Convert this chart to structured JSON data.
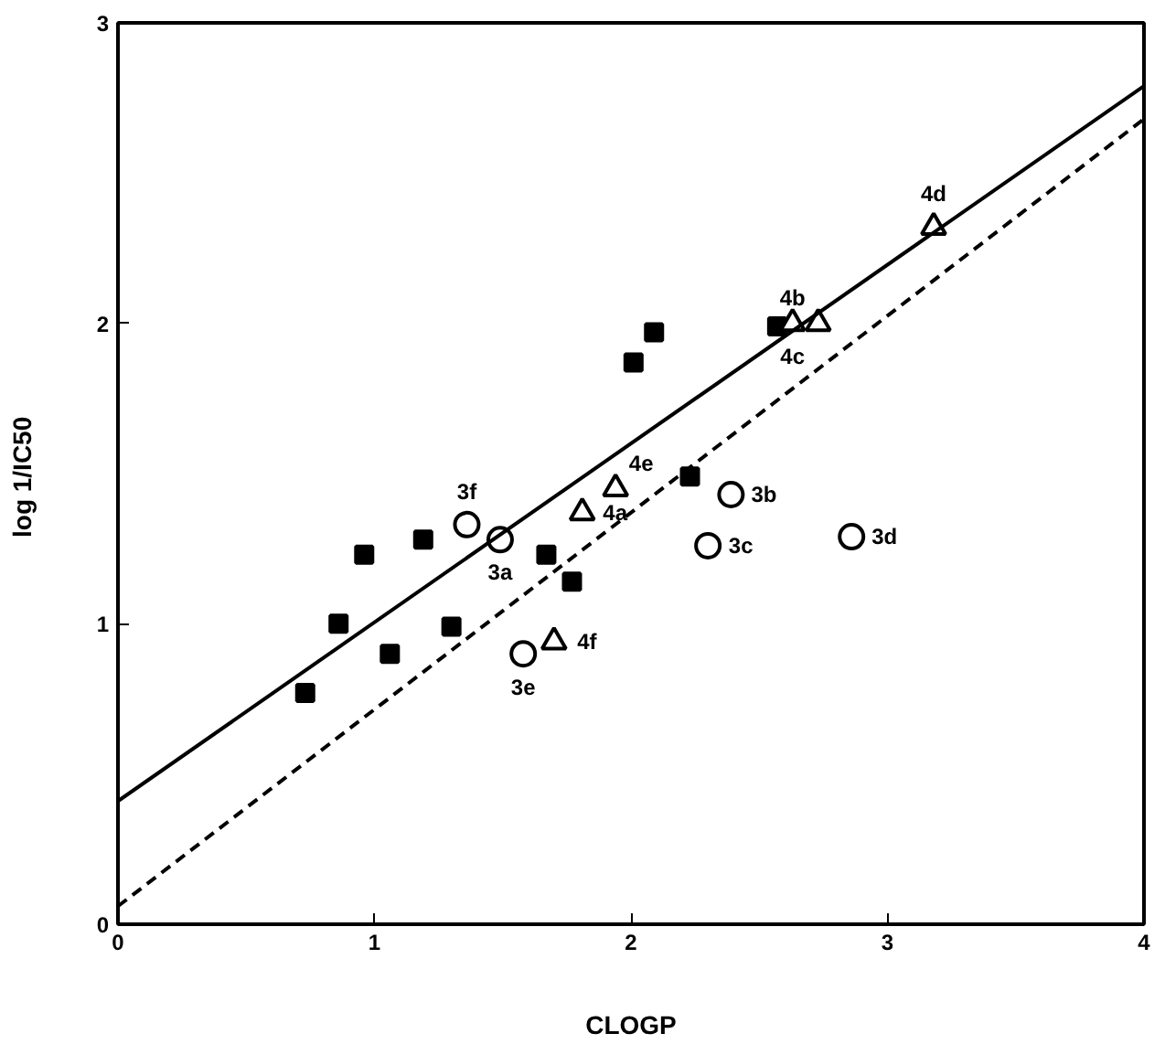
{
  "chart_data": {
    "type": "scatter",
    "xlabel": "CLOGP",
    "ylabel": "log  1/IC50",
    "xlim": [
      0,
      4
    ],
    "ylim": [
      0,
      3
    ],
    "xticks": [
      0,
      1,
      2,
      3,
      4
    ],
    "yticks": [
      0,
      1,
      2,
      3
    ],
    "grid": false,
    "series": [
      {
        "marker": "square",
        "color": "#000000",
        "x": [
          0.73,
          0.86,
          1.06,
          0.96,
          1.19,
          1.3,
          1.67,
          1.77,
          2.01,
          2.09,
          2.23,
          2.57
        ],
        "values": [
          0.77,
          1.0,
          0.9,
          1.23,
          1.28,
          0.99,
          1.23,
          1.14,
          1.87,
          1.97,
          1.49,
          1.99
        ]
      },
      {
        "marker": "circle",
        "color": "#000000",
        "x": [
          1.36,
          1.49,
          1.58,
          2.3,
          2.39,
          2.86
        ],
        "values": [
          1.33,
          1.28,
          0.9,
          1.26,
          1.43,
          1.29
        ]
      },
      {
        "marker": "triangle",
        "color": "#000000",
        "x": [
          1.7,
          1.81,
          1.94,
          2.63,
          2.73,
          3.18
        ],
        "values": [
          0.94,
          1.37,
          1.45,
          2.0,
          2.0,
          2.32
        ]
      },
      {
        "type": "line",
        "line_style": "solid",
        "color": "#000000",
        "x": [
          0,
          4
        ],
        "values": [
          0.41,
          2.79
        ]
      },
      {
        "type": "line",
        "line_style": "dashed",
        "color": "#000000",
        "x": [
          0,
          4
        ],
        "values": [
          0.06,
          2.68
        ]
      }
    ],
    "annotations": [
      {
        "text": "3f",
        "x": 1.36,
        "y": 1.33
      },
      {
        "text": "3a",
        "x": 1.49,
        "y": 1.28
      },
      {
        "text": "3e",
        "x": 1.58,
        "y": 0.9
      },
      {
        "text": "4f",
        "x": 1.7,
        "y": 0.94
      },
      {
        "text": "4a",
        "x": 1.81,
        "y": 1.37
      },
      {
        "text": "4e",
        "x": 1.94,
        "y": 1.45
      },
      {
        "text": "3c",
        "x": 2.3,
        "y": 1.26
      },
      {
        "text": "3b",
        "x": 2.39,
        "y": 1.43
      },
      {
        "text": "3d",
        "x": 2.86,
        "y": 1.29
      },
      {
        "text": "4c",
        "x": 2.63,
        "y": 2.0
      },
      {
        "text": "4b",
        "x": 2.73,
        "y": 2.0
      },
      {
        "text": "4d",
        "x": 3.18,
        "y": 2.32
      }
    ]
  }
}
